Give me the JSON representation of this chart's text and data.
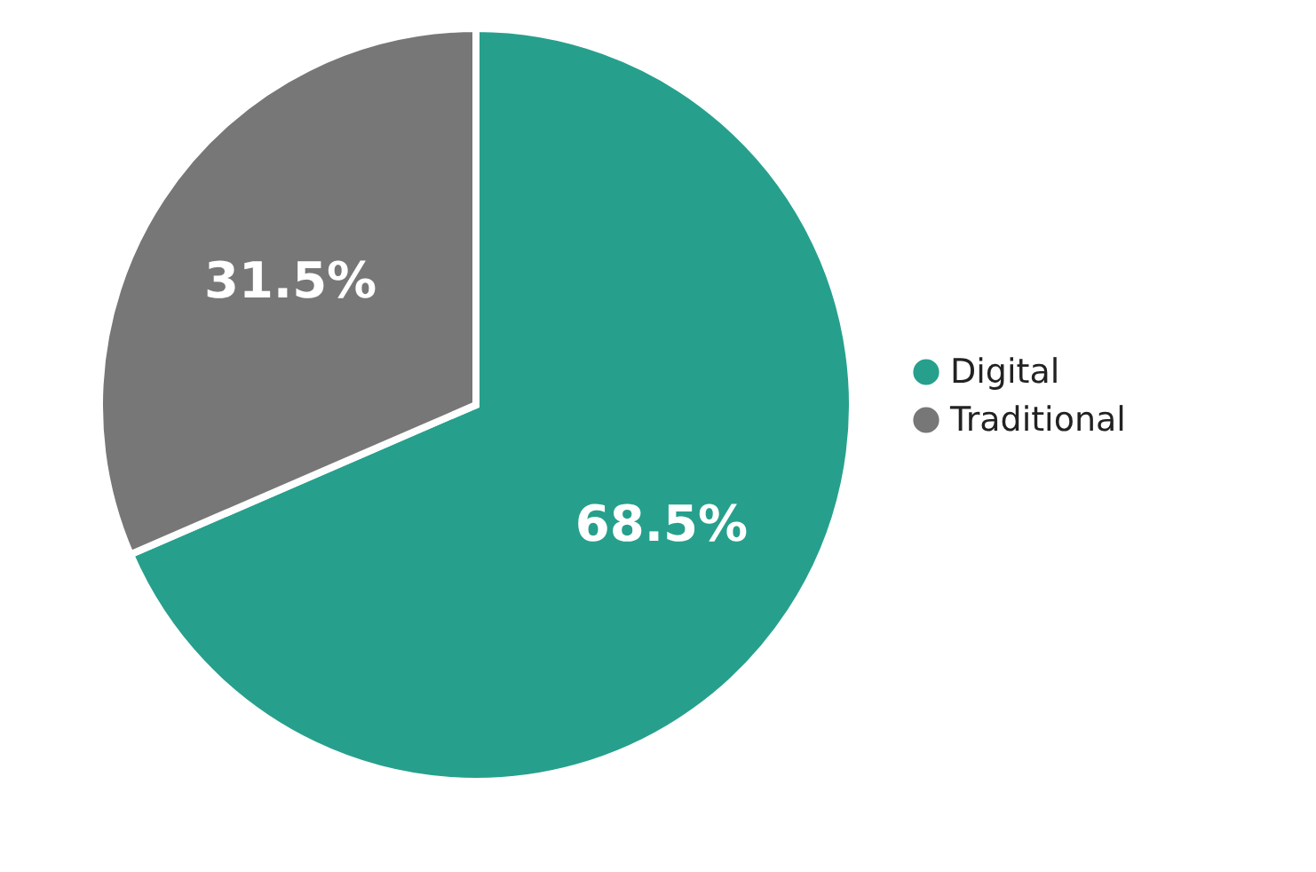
{
  "chart_data": {
    "type": "pie",
    "categories": [
      "Digital",
      "Traditional"
    ],
    "values": [
      68.5,
      31.5
    ],
    "colors": [
      "#26a08c",
      "#777777"
    ],
    "value_labels": [
      "68.5%",
      "31.5%"
    ],
    "legend": "right"
  }
}
